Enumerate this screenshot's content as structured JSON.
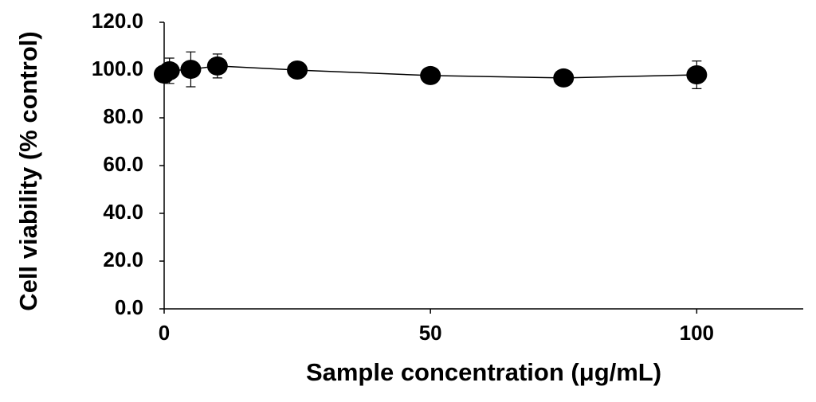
{
  "chart_data": {
    "type": "scatter",
    "x_label": "Sample concentration (μg/mL)",
    "y_label": "Cell viability (% control)",
    "x": [
      0,
      1,
      5,
      10,
      25,
      50,
      75,
      100
    ],
    "values": [
      98.3,
      99.7,
      100.3,
      101.7,
      100,
      97.7,
      96.7,
      98
    ],
    "errors": [
      3,
      5.3,
      7.3,
      5,
      1,
      1,
      1,
      5.8
    ],
    "color": "#000000",
    "xlim": [
      0,
      120
    ],
    "xticks": [
      0,
      50,
      100
    ],
    "ylim": [
      0,
      120
    ],
    "yticks": [
      {
        "value": 0,
        "label": "0.0"
      },
      {
        "value": 20,
        "label": "20.0"
      },
      {
        "value": 40,
        "label": "40.0"
      },
      {
        "value": 60,
        "label": "60.0"
      },
      {
        "value": 80,
        "label": "80.0"
      },
      {
        "value": 100,
        "label": "100.0"
      },
      {
        "value": 120,
        "label": "120.0"
      }
    ]
  }
}
